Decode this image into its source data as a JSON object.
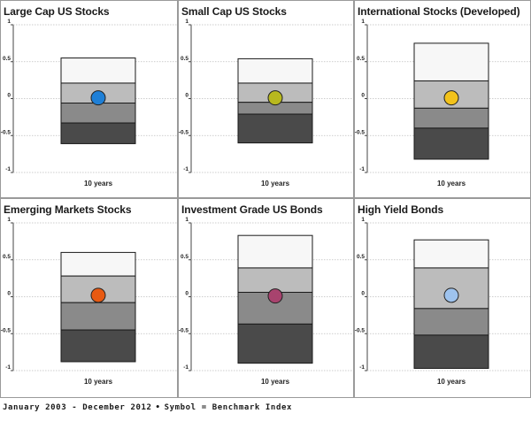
{
  "footer": {
    "period": "January 2003 - December 2012",
    "bullet": "•",
    "symbol_note": "Symbol = Benchmark Index"
  },
  "colors": {
    "band_top": "#f7f7f7",
    "band_upper": "#bcbcbc",
    "band_lower": "#8a8a8a",
    "band_bottom": "#4a4a4a",
    "grid": "#bdbdbd"
  },
  "chart_data": [
    {
      "type": "bar",
      "title": "Large Cap US Stocks",
      "categories": [
        "10 years"
      ],
      "ylim": [
        -1,
        1
      ],
      "yticks": [
        1,
        0.5,
        0,
        -0.5,
        -1
      ],
      "ytick_labels": [
        "1",
        "0.5",
        "0",
        "-0.5",
        "-1"
      ],
      "boundaries": [
        0.55,
        0.21,
        -0.06,
        -0.33,
        -0.61
      ],
      "benchmark": 0.01,
      "benchmark_color": "#1e7fd6"
    },
    {
      "type": "bar",
      "title": "Small Cap US Stocks",
      "categories": [
        "10 years"
      ],
      "ylim": [
        -1,
        1
      ],
      "yticks": [
        1,
        0.5,
        0,
        -0.5,
        -1
      ],
      "ytick_labels": [
        "1",
        "0.5",
        "0",
        "-0.5",
        "-1"
      ],
      "boundaries": [
        0.54,
        0.21,
        -0.05,
        -0.21,
        -0.6
      ],
      "benchmark": 0.01,
      "benchmark_color": "#b8b81f"
    },
    {
      "type": "bar",
      "title": "International Stocks (Developed)",
      "categories": [
        "10 years"
      ],
      "ylim": [
        -1,
        1
      ],
      "yticks": [
        1,
        0.5,
        0,
        -0.5,
        -1
      ],
      "ytick_labels": [
        "1",
        "0.5",
        "0",
        "-0.5",
        "-1"
      ],
      "boundaries": [
        0.75,
        0.24,
        -0.13,
        -0.4,
        -0.82
      ],
      "benchmark": 0.01,
      "benchmark_color": "#f2c21b"
    },
    {
      "type": "bar",
      "title": "Emerging Markets Stocks",
      "categories": [
        "10 years"
      ],
      "ylim": [
        -1,
        1
      ],
      "yticks": [
        1,
        0.5,
        0,
        -0.5,
        -1
      ],
      "ytick_labels": [
        "1",
        "0.5",
        "0",
        "-0.5",
        "-1"
      ],
      "boundaries": [
        0.6,
        0.28,
        -0.08,
        -0.45,
        -0.88
      ],
      "benchmark": 0.02,
      "benchmark_color": "#e85a12"
    },
    {
      "type": "bar",
      "title": "Investment Grade US Bonds",
      "categories": [
        "10 years"
      ],
      "ylim": [
        -1,
        1
      ],
      "yticks": [
        1,
        0.5,
        0,
        -0.5,
        -1
      ],
      "ytick_labels": [
        "1",
        "0.5",
        "0",
        "-0.5",
        "-1"
      ],
      "boundaries": [
        0.83,
        0.39,
        0.06,
        -0.37,
        -0.9
      ],
      "benchmark": 0.01,
      "benchmark_color": "#a8436e"
    },
    {
      "type": "bar",
      "title": "High Yield Bonds",
      "categories": [
        "10 years"
      ],
      "ylim": [
        -1,
        1
      ],
      "yticks": [
        1,
        0.5,
        0,
        -0.5,
        -1
      ],
      "ytick_labels": [
        "1",
        "0.5",
        "0",
        "-0.5",
        "-1"
      ],
      "boundaries": [
        0.77,
        0.39,
        -0.16,
        -0.52,
        -0.97
      ],
      "benchmark": 0.02,
      "benchmark_color": "#9ec3ee"
    }
  ]
}
